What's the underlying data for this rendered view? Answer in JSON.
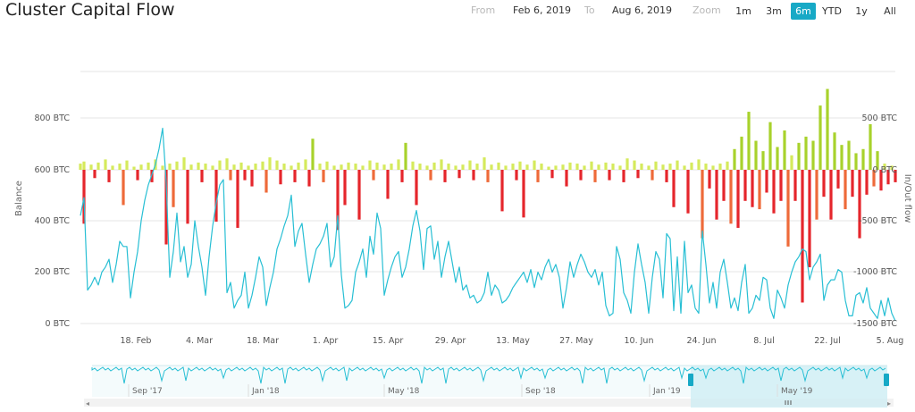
{
  "header": {
    "title": "Cluster Capital Flow",
    "from_label": "From",
    "from_value": "Feb 6, 2019",
    "to_label": "To",
    "to_value": "Aug 6, 2019",
    "zoom_label": "Zoom",
    "zoom_buttons": [
      "1m",
      "3m",
      "6m",
      "YTD",
      "1y",
      "All"
    ],
    "active_zoom": "6m"
  },
  "chart_data": {
    "type": "line+bar",
    "title": "Cluster Capital Flow",
    "left_axis": {
      "label": "Balance",
      "ticks": [
        "0 BTC",
        "200 BTC",
        "400 BTC",
        "600 BTC",
        "800 BTC"
      ],
      "range": [
        0,
        800
      ]
    },
    "right_axis": {
      "label": "In/Out flow",
      "ticks": [
        "-1500 BTC",
        "-1000 BTC",
        "-500 BTC",
        "0 BTC",
        "500 BTC"
      ],
      "range": [
        -1500,
        500
      ]
    },
    "x_axis": {
      "ticks": [
        "18. Feb",
        "4. Mar",
        "18. Mar",
        "1. Apr",
        "15. Apr",
        "29. Apr",
        "13. May",
        "27. May",
        "10. Jun",
        "24. Jun",
        "8. Jul",
        "22. Jul",
        "5. Aug"
      ]
    },
    "colors": {
      "balance_line": "#28bfd4",
      "inflow_light": "#d5ea5c",
      "inflow_strong": "#a8d22c",
      "outflow": "#e5262c",
      "outflow_orange": "#ee6a3a",
      "navigator_fill": "#d7f1f6",
      "navigator_handle": "#17a9c6"
    },
    "balance_series": [
      [
        0,
        420
      ],
      [
        1,
        490
      ],
      [
        2,
        130
      ],
      [
        3,
        150
      ],
      [
        4,
        180
      ],
      [
        5,
        150
      ],
      [
        6,
        200
      ],
      [
        7,
        220
      ],
      [
        8,
        250
      ],
      [
        9,
        160
      ],
      [
        10,
        230
      ],
      [
        11,
        320
      ],
      [
        12,
        300
      ],
      [
        13,
        300
      ],
      [
        14,
        100
      ],
      [
        15,
        200
      ],
      [
        16,
        280
      ],
      [
        17,
        400
      ],
      [
        18,
        480
      ],
      [
        19,
        540
      ],
      [
        20,
        580
      ],
      [
        21,
        620
      ],
      [
        22,
        680
      ],
      [
        23,
        760
      ],
      [
        24,
        550
      ],
      [
        25,
        180
      ],
      [
        26,
        280
      ],
      [
        27,
        430
      ],
      [
        28,
        240
      ],
      [
        29,
        300
      ],
      [
        30,
        180
      ],
      [
        31,
        230
      ],
      [
        32,
        400
      ],
      [
        33,
        300
      ],
      [
        34,
        220
      ],
      [
        35,
        110
      ],
      [
        36,
        260
      ],
      [
        37,
        380
      ],
      [
        38,
        470
      ],
      [
        39,
        540
      ],
      [
        40,
        560
      ],
      [
        41,
        120
      ],
      [
        42,
        160
      ],
      [
        43,
        60
      ],
      [
        44,
        90
      ],
      [
        45,
        110
      ],
      [
        46,
        200
      ],
      [
        47,
        60
      ],
      [
        48,
        110
      ],
      [
        49,
        180
      ],
      [
        50,
        260
      ],
      [
        51,
        220
      ],
      [
        52,
        70
      ],
      [
        53,
        140
      ],
      [
        54,
        200
      ],
      [
        55,
        290
      ],
      [
        56,
        330
      ],
      [
        57,
        380
      ],
      [
        58,
        420
      ],
      [
        59,
        500
      ],
      [
        60,
        300
      ],
      [
        61,
        360
      ],
      [
        62,
        390
      ],
      [
        63,
        270
      ],
      [
        64,
        160
      ],
      [
        65,
        230
      ],
      [
        66,
        290
      ],
      [
        67,
        310
      ],
      [
        68,
        340
      ],
      [
        69,
        390
      ],
      [
        70,
        220
      ],
      [
        71,
        260
      ],
      [
        72,
        420
      ],
      [
        73,
        190
      ],
      [
        74,
        60
      ],
      [
        75,
        70
      ],
      [
        76,
        90
      ],
      [
        77,
        200
      ],
      [
        78,
        240
      ],
      [
        79,
        290
      ],
      [
        80,
        180
      ],
      [
        81,
        340
      ],
      [
        82,
        270
      ],
      [
        83,
        430
      ],
      [
        84,
        370
      ],
      [
        85,
        110
      ],
      [
        86,
        170
      ],
      [
        87,
        220
      ],
      [
        88,
        260
      ],
      [
        89,
        280
      ],
      [
        90,
        180
      ],
      [
        91,
        220
      ],
      [
        92,
        290
      ],
      [
        93,
        380
      ],
      [
        94,
        440
      ],
      [
        95,
        360
      ],
      [
        96,
        210
      ],
      [
        97,
        370
      ],
      [
        98,
        380
      ],
      [
        99,
        250
      ],
      [
        100,
        320
      ],
      [
        101,
        180
      ],
      [
        102,
        260
      ],
      [
        103,
        320
      ],
      [
        104,
        240
      ],
      [
        105,
        160
      ],
      [
        106,
        220
      ],
      [
        107,
        130
      ],
      [
        108,
        150
      ],
      [
        109,
        100
      ],
      [
        110,
        110
      ],
      [
        111,
        80
      ],
      [
        112,
        90
      ],
      [
        113,
        120
      ],
      [
        114,
        200
      ],
      [
        115,
        110
      ],
      [
        116,
        150
      ],
      [
        117,
        130
      ],
      [
        118,
        80
      ],
      [
        119,
        90
      ],
      [
        120,
        110
      ],
      [
        121,
        140
      ],
      [
        122,
        160
      ],
      [
        123,
        180
      ],
      [
        124,
        200
      ],
      [
        125,
        160
      ],
      [
        126,
        210
      ],
      [
        127,
        140
      ],
      [
        128,
        200
      ],
      [
        129,
        170
      ],
      [
        130,
        220
      ],
      [
        131,
        250
      ],
      [
        132,
        200
      ],
      [
        133,
        230
      ],
      [
        134,
        180
      ],
      [
        135,
        60
      ],
      [
        136,
        140
      ],
      [
        137,
        240
      ],
      [
        138,
        180
      ],
      [
        139,
        230
      ],
      [
        140,
        270
      ],
      [
        141,
        240
      ],
      [
        142,
        200
      ],
      [
        143,
        180
      ],
      [
        144,
        210
      ],
      [
        145,
        150
      ],
      [
        146,
        200
      ],
      [
        147,
        70
      ],
      [
        148,
        30
      ],
      [
        149,
        40
      ],
      [
        150,
        300
      ],
      [
        151,
        250
      ],
      [
        152,
        120
      ],
      [
        153,
        90
      ],
      [
        154,
        40
      ],
      [
        155,
        200
      ],
      [
        156,
        310
      ],
      [
        157,
        230
      ],
      [
        158,
        160
      ],
      [
        159,
        40
      ],
      [
        160,
        180
      ],
      [
        161,
        280
      ],
      [
        162,
        250
      ],
      [
        163,
        100
      ],
      [
        164,
        350
      ],
      [
        165,
        330
      ],
      [
        166,
        50
      ],
      [
        167,
        260
      ],
      [
        168,
        40
      ],
      [
        169,
        320
      ],
      [
        170,
        120
      ],
      [
        171,
        150
      ],
      [
        172,
        60
      ],
      [
        173,
        40
      ],
      [
        174,
        360
      ],
      [
        175,
        230
      ],
      [
        176,
        80
      ],
      [
        177,
        160
      ],
      [
        178,
        60
      ],
      [
        179,
        200
      ],
      [
        180,
        250
      ],
      [
        181,
        160
      ],
      [
        182,
        60
      ],
      [
        183,
        100
      ],
      [
        184,
        50
      ],
      [
        185,
        160
      ],
      [
        186,
        230
      ],
      [
        187,
        40
      ],
      [
        188,
        60
      ],
      [
        189,
        110
      ],
      [
        190,
        90
      ],
      [
        191,
        180
      ],
      [
        192,
        170
      ],
      [
        193,
        60
      ],
      [
        194,
        20
      ],
      [
        195,
        130
      ],
      [
        196,
        100
      ],
      [
        197,
        60
      ],
      [
        198,
        150
      ],
      [
        199,
        200
      ],
      [
        200,
        240
      ],
      [
        201,
        260
      ],
      [
        202,
        290
      ],
      [
        203,
        280
      ],
      [
        204,
        170
      ],
      [
        205,
        220
      ],
      [
        206,
        240
      ],
      [
        207,
        270
      ],
      [
        208,
        90
      ],
      [
        209,
        150
      ],
      [
        210,
        170
      ],
      [
        211,
        170
      ],
      [
        212,
        210
      ],
      [
        213,
        200
      ],
      [
        214,
        90
      ],
      [
        215,
        30
      ],
      [
        216,
        30
      ],
      [
        217,
        110
      ],
      [
        218,
        120
      ],
      [
        219,
        80
      ],
      [
        220,
        140
      ],
      [
        221,
        60
      ],
      [
        222,
        40
      ],
      [
        223,
        20
      ],
      [
        224,
        90
      ],
      [
        225,
        30
      ],
      [
        226,
        100
      ],
      [
        227,
        40
      ],
      [
        228,
        10
      ]
    ],
    "inflow_bars_btc": [
      [
        0,
        60
      ],
      [
        1,
        80
      ],
      [
        3,
        50
      ],
      [
        5,
        70
      ],
      [
        7,
        100
      ],
      [
        9,
        40
      ],
      [
        11,
        60
      ],
      [
        13,
        90
      ],
      [
        15,
        30
      ],
      [
        17,
        50
      ],
      [
        19,
        70
      ],
      [
        21,
        100
      ],
      [
        23,
        40
      ],
      [
        25,
        60
      ],
      [
        27,
        80
      ],
      [
        29,
        120
      ],
      [
        31,
        50
      ],
      [
        33,
        70
      ],
      [
        35,
        60
      ],
      [
        37,
        40
      ],
      [
        39,
        90
      ],
      [
        41,
        110
      ],
      [
        43,
        50
      ],
      [
        45,
        70
      ],
      [
        47,
        40
      ],
      [
        49,
        60
      ],
      [
        51,
        80
      ],
      [
        53,
        120
      ],
      [
        55,
        90
      ],
      [
        57,
        60
      ],
      [
        59,
        40
      ],
      [
        61,
        70
      ],
      [
        63,
        100
      ],
      [
        65,
        300
      ],
      [
        67,
        60
      ],
      [
        69,
        80
      ],
      [
        71,
        40
      ],
      [
        73,
        50
      ],
      [
        75,
        70
      ],
      [
        77,
        60
      ],
      [
        79,
        40
      ],
      [
        81,
        90
      ],
      [
        83,
        70
      ],
      [
        85,
        50
      ],
      [
        87,
        60
      ],
      [
        89,
        100
      ],
      [
        91,
        260
      ],
      [
        93,
        80
      ],
      [
        95,
        60
      ],
      [
        97,
        40
      ],
      [
        99,
        70
      ],
      [
        101,
        100
      ],
      [
        103,
        60
      ],
      [
        105,
        40
      ],
      [
        107,
        50
      ],
      [
        109,
        90
      ],
      [
        111,
        60
      ],
      [
        113,
        120
      ],
      [
        115,
        50
      ],
      [
        117,
        70
      ],
      [
        119,
        40
      ],
      [
        121,
        60
      ],
      [
        123,
        80
      ],
      [
        125,
        50
      ],
      [
        127,
        90
      ],
      [
        129,
        60
      ],
      [
        131,
        30
      ],
      [
        133,
        40
      ],
      [
        135,
        50
      ],
      [
        137,
        70
      ],
      [
        139,
        60
      ],
      [
        141,
        40
      ],
      [
        143,
        80
      ],
      [
        145,
        50
      ],
      [
        147,
        70
      ],
      [
        149,
        60
      ],
      [
        151,
        40
      ],
      [
        153,
        110
      ],
      [
        155,
        90
      ],
      [
        157,
        60
      ],
      [
        159,
        40
      ],
      [
        161,
        80
      ],
      [
        163,
        50
      ],
      [
        165,
        60
      ],
      [
        167,
        90
      ],
      [
        169,
        40
      ],
      [
        171,
        70
      ],
      [
        173,
        100
      ],
      [
        175,
        60
      ],
      [
        177,
        40
      ],
      [
        179,
        60
      ],
      [
        181,
        80
      ],
      [
        183,
        200
      ],
      [
        185,
        320
      ],
      [
        187,
        560
      ],
      [
        189,
        280
      ],
      [
        191,
        180
      ],
      [
        193,
        460
      ],
      [
        195,
        220
      ],
      [
        197,
        380
      ],
      [
        199,
        140
      ],
      [
        201,
        260
      ],
      [
        203,
        320
      ],
      [
        205,
        280
      ],
      [
        207,
        620
      ],
      [
        209,
        780
      ],
      [
        211,
        360
      ],
      [
        213,
        240
      ],
      [
        215,
        280
      ],
      [
        217,
        160
      ],
      [
        219,
        200
      ],
      [
        221,
        440
      ],
      [
        223,
        180
      ],
      [
        225,
        60
      ],
      [
        227,
        40
      ]
    ],
    "outflow_bars_btc": [
      [
        1,
        -520
      ],
      [
        4,
        -80
      ],
      [
        8,
        -120
      ],
      [
        12,
        -340
      ],
      [
        16,
        -100
      ],
      [
        20,
        -120
      ],
      [
        24,
        -720
      ],
      [
        26,
        -360
      ],
      [
        30,
        -520
      ],
      [
        34,
        -120
      ],
      [
        38,
        -500
      ],
      [
        42,
        -100
      ],
      [
        44,
        -560
      ],
      [
        46,
        -100
      ],
      [
        48,
        -160
      ],
      [
        52,
        -220
      ],
      [
        56,
        -140
      ],
      [
        60,
        -120
      ],
      [
        64,
        -160
      ],
      [
        68,
        -120
      ],
      [
        72,
        -580
      ],
      [
        74,
        -340
      ],
      [
        78,
        -480
      ],
      [
        82,
        -100
      ],
      [
        86,
        -280
      ],
      [
        90,
        -120
      ],
      [
        94,
        -340
      ],
      [
        98,
        -100
      ],
      [
        102,
        -120
      ],
      [
        106,
        -80
      ],
      [
        110,
        -100
      ],
      [
        114,
        -120
      ],
      [
        118,
        -400
      ],
      [
        122,
        -100
      ],
      [
        124,
        -460
      ],
      [
        128,
        -120
      ],
      [
        132,
        -80
      ],
      [
        136,
        -160
      ],
      [
        140,
        -100
      ],
      [
        144,
        -120
      ],
      [
        148,
        -100
      ],
      [
        152,
        -120
      ],
      [
        156,
        -80
      ],
      [
        160,
        -100
      ],
      [
        164,
        -120
      ],
      [
        166,
        -360
      ],
      [
        170,
        -420
      ],
      [
        174,
        -660
      ],
      [
        176,
        -180
      ],
      [
        178,
        -480
      ],
      [
        180,
        -300
      ],
      [
        182,
        -520
      ],
      [
        184,
        -560
      ],
      [
        186,
        -300
      ],
      [
        188,
        -360
      ],
      [
        190,
        -380
      ],
      [
        192,
        -220
      ],
      [
        194,
        -420
      ],
      [
        196,
        -300
      ],
      [
        198,
        -740
      ],
      [
        200,
        -300
      ],
      [
        202,
        -1280
      ],
      [
        204,
        -940
      ],
      [
        206,
        -480
      ],
      [
        208,
        -260
      ],
      [
        210,
        -480
      ],
      [
        212,
        -180
      ],
      [
        214,
        -380
      ],
      [
        216,
        -260
      ],
      [
        218,
        -660
      ],
      [
        220,
        -240
      ],
      [
        222,
        -160
      ],
      [
        224,
        -200
      ],
      [
        226,
        -140
      ],
      [
        228,
        -120
      ]
    ],
    "navigator": {
      "x_ticks": [
        "Sep '17",
        "Jan '18",
        "May '18",
        "Sep '18",
        "Jan '19",
        "May '19"
      ]
    }
  }
}
